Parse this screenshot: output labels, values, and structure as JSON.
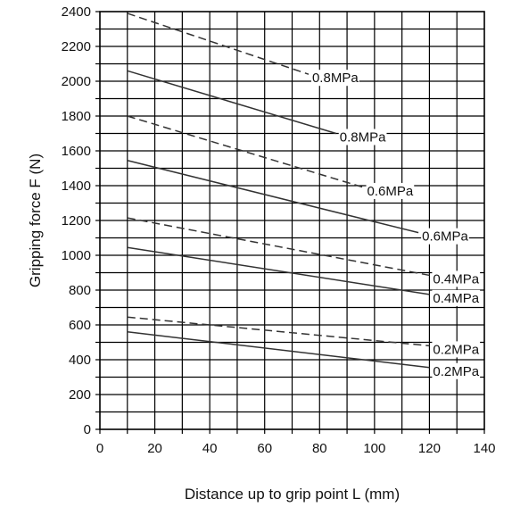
{
  "chart_data": {
    "type": "line",
    "title": "",
    "xlabel": "Distance up to grip point L (mm)",
    "ylabel": "Gripping force F (N)",
    "xlim": [
      0,
      140
    ],
    "ylim": [
      0,
      2400
    ],
    "x_ticks": [
      0,
      20,
      40,
      60,
      80,
      100,
      120,
      140
    ],
    "y_ticks": [
      0,
      200,
      400,
      600,
      800,
      1000,
      1200,
      1400,
      1600,
      1800,
      2000,
      2200,
      2400
    ],
    "grid": true,
    "series": [
      {
        "label": "0.8MPa",
        "style": "dashed",
        "x": [
          10,
          76
        ],
        "y": [
          2390,
          2040
        ]
      },
      {
        "label": "0.8MPa",
        "style": "solid",
        "x": [
          10,
          86
        ],
        "y": [
          2060,
          1700
        ]
      },
      {
        "label": "0.6MPa",
        "style": "dashed",
        "x": [
          10,
          96
        ],
        "y": [
          1800,
          1390
        ]
      },
      {
        "label": "0.6MPa",
        "style": "solid",
        "x": [
          10,
          116
        ],
        "y": [
          1545,
          1130
        ]
      },
      {
        "label": "0.4MPa",
        "style": "dashed",
        "x": [
          10,
          120
        ],
        "y": [
          1215,
          885
        ]
      },
      {
        "label": "0.4MPa",
        "style": "solid",
        "x": [
          10,
          120
        ],
        "y": [
          1045,
          775
        ]
      },
      {
        "label": "0.2MPa",
        "style": "dashed",
        "x": [
          10,
          120
        ],
        "y": [
          645,
          480
        ]
      },
      {
        "label": "0.2MPa",
        "style": "solid",
        "x": [
          10,
          120
        ],
        "y": [
          560,
          355
        ]
      }
    ]
  }
}
